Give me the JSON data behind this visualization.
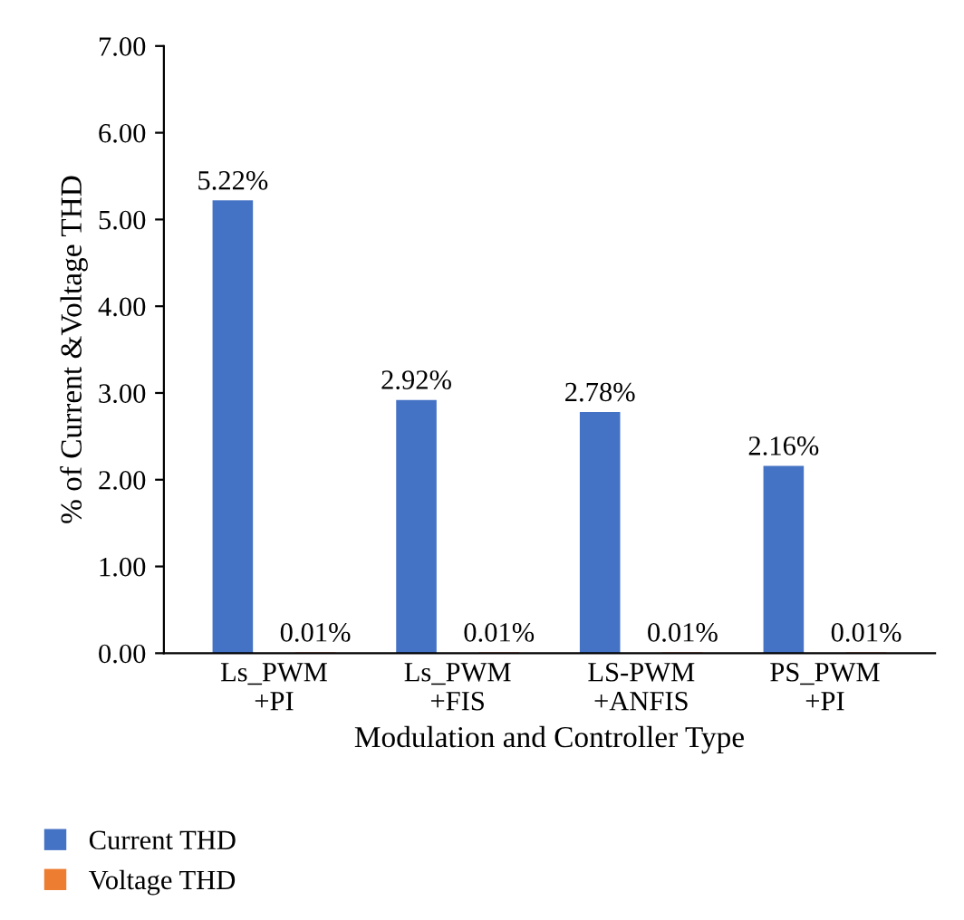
{
  "chart_data": {
    "type": "bar",
    "xlabel": "Modulation and Controller Type",
    "ylabel": "% of Current &Voltage THD",
    "categories": [
      "Ls_PWM\n+PI",
      "Ls_PWM\n+FIS",
      "LS-PWM\n+ANFIS",
      "PS_PWM\n+PI"
    ],
    "series": [
      {
        "name": "Current THD",
        "color": "#4472c4",
        "values": [
          5.22,
          2.92,
          2.78,
          2.16
        ],
        "value_labels": [
          "5.22%",
          "2.92%",
          "2.78%",
          "2.16%"
        ]
      },
      {
        "name": "Voltage THD",
        "color": "#ed7d31",
        "values": [
          0.01,
          0.01,
          0.01,
          0.01
        ],
        "value_labels": [
          "0.01%",
          "0.01%",
          "0.01%",
          "0.01%"
        ]
      }
    ],
    "ylim": [
      0,
      7
    ],
    "yticks": [
      {
        "value": 0,
        "label": "0.00"
      },
      {
        "value": 1,
        "label": "1.00"
      },
      {
        "value": 2,
        "label": "2.00"
      },
      {
        "value": 3,
        "label": "3.00"
      },
      {
        "value": 4,
        "label": "4.00"
      },
      {
        "value": 5,
        "label": "5.00"
      },
      {
        "value": 6,
        "label": "6.00"
      },
      {
        "value": 7,
        "label": "7.00"
      }
    ],
    "legend": "bottom left"
  }
}
